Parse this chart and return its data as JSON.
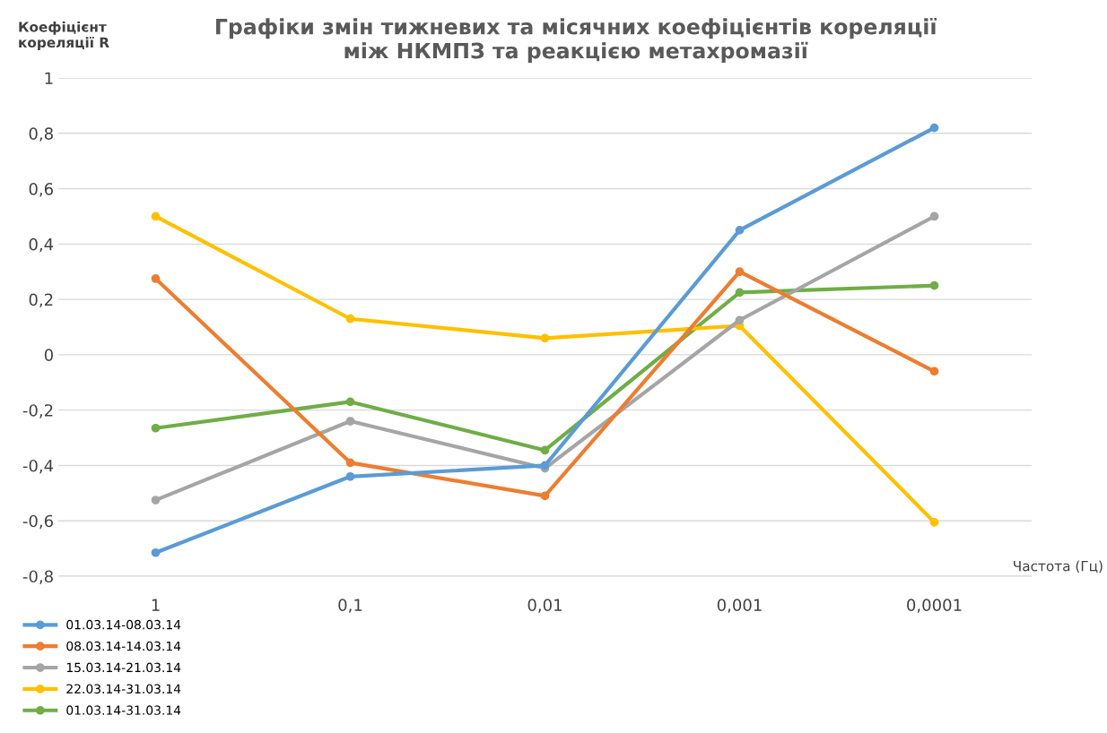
{
  "chart_data": {
    "type": "line",
    "title": "Графіки змін тижневих та місячних коефіцієнтів кореляції\nміж НКМПЗ та реакцією метахромазії",
    "xlabel": "Частота (Гц)",
    "ylabel": "Коефіцієнт\nкореляції R",
    "categories": [
      "1",
      "0,1",
      "0,01",
      "0,001",
      "0,0001"
    ],
    "series": [
      {
        "name": "01.03.14-08.03.14",
        "color": "#5b9bd5",
        "values": [
          -0.715,
          -0.44,
          -0.4,
          0.45,
          0.82
        ]
      },
      {
        "name": "08.03.14-14.03.14",
        "color": "#ed7d31",
        "values": [
          0.275,
          -0.39,
          -0.51,
          0.3,
          -0.06
        ]
      },
      {
        "name": "15.03.14-21.03.14",
        "color": "#a5a5a5",
        "values": [
          -0.525,
          -0.24,
          -0.41,
          0.125,
          0.5
        ]
      },
      {
        "name": "22.03.14-31.03.14",
        "color": "#ffc000",
        "values": [
          0.5,
          0.13,
          0.06,
          0.105,
          -0.605
        ]
      },
      {
        "name": "01.03.14-31.03.14",
        "color": "#70ad47",
        "values": [
          -0.265,
          -0.17,
          -0.345,
          0.225,
          0.25
        ]
      }
    ],
    "ylim": [
      -0.8,
      1
    ],
    "yticks": [
      {
        "value": -0.8,
        "label": "-0,8"
      },
      {
        "value": -0.6,
        "label": "-0,6"
      },
      {
        "value": -0.4,
        "label": "-0,4"
      },
      {
        "value": -0.2,
        "label": "-0,2"
      },
      0,
      {
        "value": 0.2,
        "label": "0,2"
      },
      {
        "value": 0.4,
        "label": "0,4"
      },
      {
        "value": 0.6,
        "label": "0,6"
      },
      {
        "value": 0.8,
        "label": "0,8"
      },
      1
    ],
    "grid": "y",
    "legend": "bottom left",
    "marker": "circle",
    "line_style": "solid"
  }
}
